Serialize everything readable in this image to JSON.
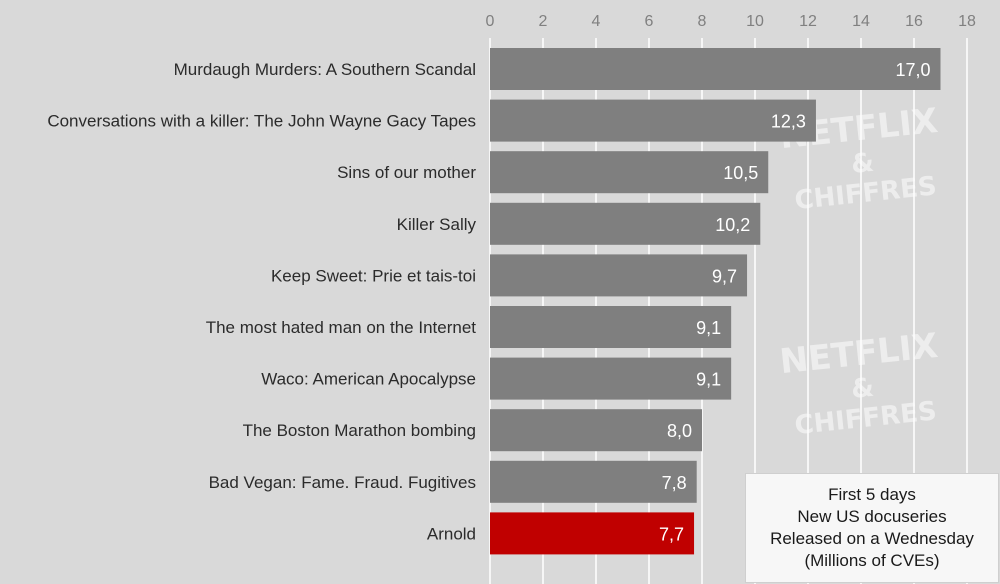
{
  "chart_data": {
    "type": "bar",
    "orientation": "horizontal",
    "categories": [
      "Murdaugh Murders: A Southern Scandal",
      "Conversations with a killer: The John Wayne Gacy Tapes",
      "Sins of our mother",
      "Killer Sally",
      "Keep Sweet: Prie et tais-toi",
      "The most hated man on the Internet",
      "Waco: American Apocalypse",
      "The Boston Marathon bombing",
      "Bad Vegan: Fame. Fraud. Fugitives",
      "Arnold"
    ],
    "values": [
      17.0,
      12.3,
      10.5,
      10.2,
      9.7,
      9.1,
      9.1,
      8.0,
      7.8,
      7.7
    ],
    "value_labels": [
      "17,0",
      "12,3",
      "10,5",
      "10,2",
      "9,7",
      "9,1",
      "9,1",
      "8,0",
      "7,8",
      "7,7"
    ],
    "highlight_index": 9,
    "xlim": [
      0,
      18
    ],
    "xticks": [
      0,
      2,
      4,
      6,
      8,
      10,
      12,
      14,
      16,
      18
    ],
    "x_axis_position": "top",
    "grid": true,
    "colors": {
      "bar": "#7f7f7f",
      "highlight": "#c00000",
      "grid": "#ffffff",
      "background": "#d9d9d9"
    },
    "annotation_box": {
      "placement": "bottom-right",
      "lines": [
        "First 5 days",
        "New US docuseries",
        "Released on a Wednesday",
        "(Millions of CVEs)"
      ]
    },
    "watermark": [
      "NETFLIX",
      "&",
      "CHIFFRES"
    ]
  }
}
